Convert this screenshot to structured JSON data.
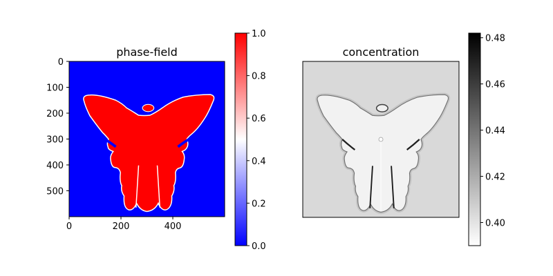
{
  "chart_data": [
    {
      "type": "heatmap",
      "title": "phase-field",
      "xlabel": "",
      "ylabel": "",
      "x_ticks": [
        0,
        200,
        400
      ],
      "y_ticks": [
        0,
        100,
        200,
        300,
        400,
        500
      ],
      "xlim": [
        0,
        600
      ],
      "ylim": [
        600,
        0
      ],
      "colormap": "bwr",
      "colors": {
        "low": "#0000ff",
        "mid": "#ffffff",
        "high": "#ff0000"
      },
      "colorbar": {
        "range": [
          0.0,
          1.0
        ],
        "ticks": [
          "0.0",
          "0.2",
          "0.4",
          "0.6",
          "0.8",
          "1.0"
        ]
      },
      "field": {
        "background_value": 0.0,
        "solid_value": 1.0,
        "shape": "dendritic butterfly-shaped solid grown from a seed near (300, 300)"
      },
      "grid": false
    },
    {
      "type": "heatmap",
      "title": "concentration",
      "xlabel": "",
      "ylabel": "",
      "axes_ticks": false,
      "colormap": "gray_r",
      "colors": {
        "low": "#ffffff",
        "high": "#000000"
      },
      "colorbar": {
        "range": [
          0.39,
          0.482
        ],
        "ticks": [
          "0.40",
          "0.42",
          "0.44",
          "0.46",
          "0.48"
        ]
      },
      "field": {
        "background_value": 0.419,
        "solid_value": 0.402,
        "boundary_value": 0.47
      },
      "grid": false
    }
  ]
}
